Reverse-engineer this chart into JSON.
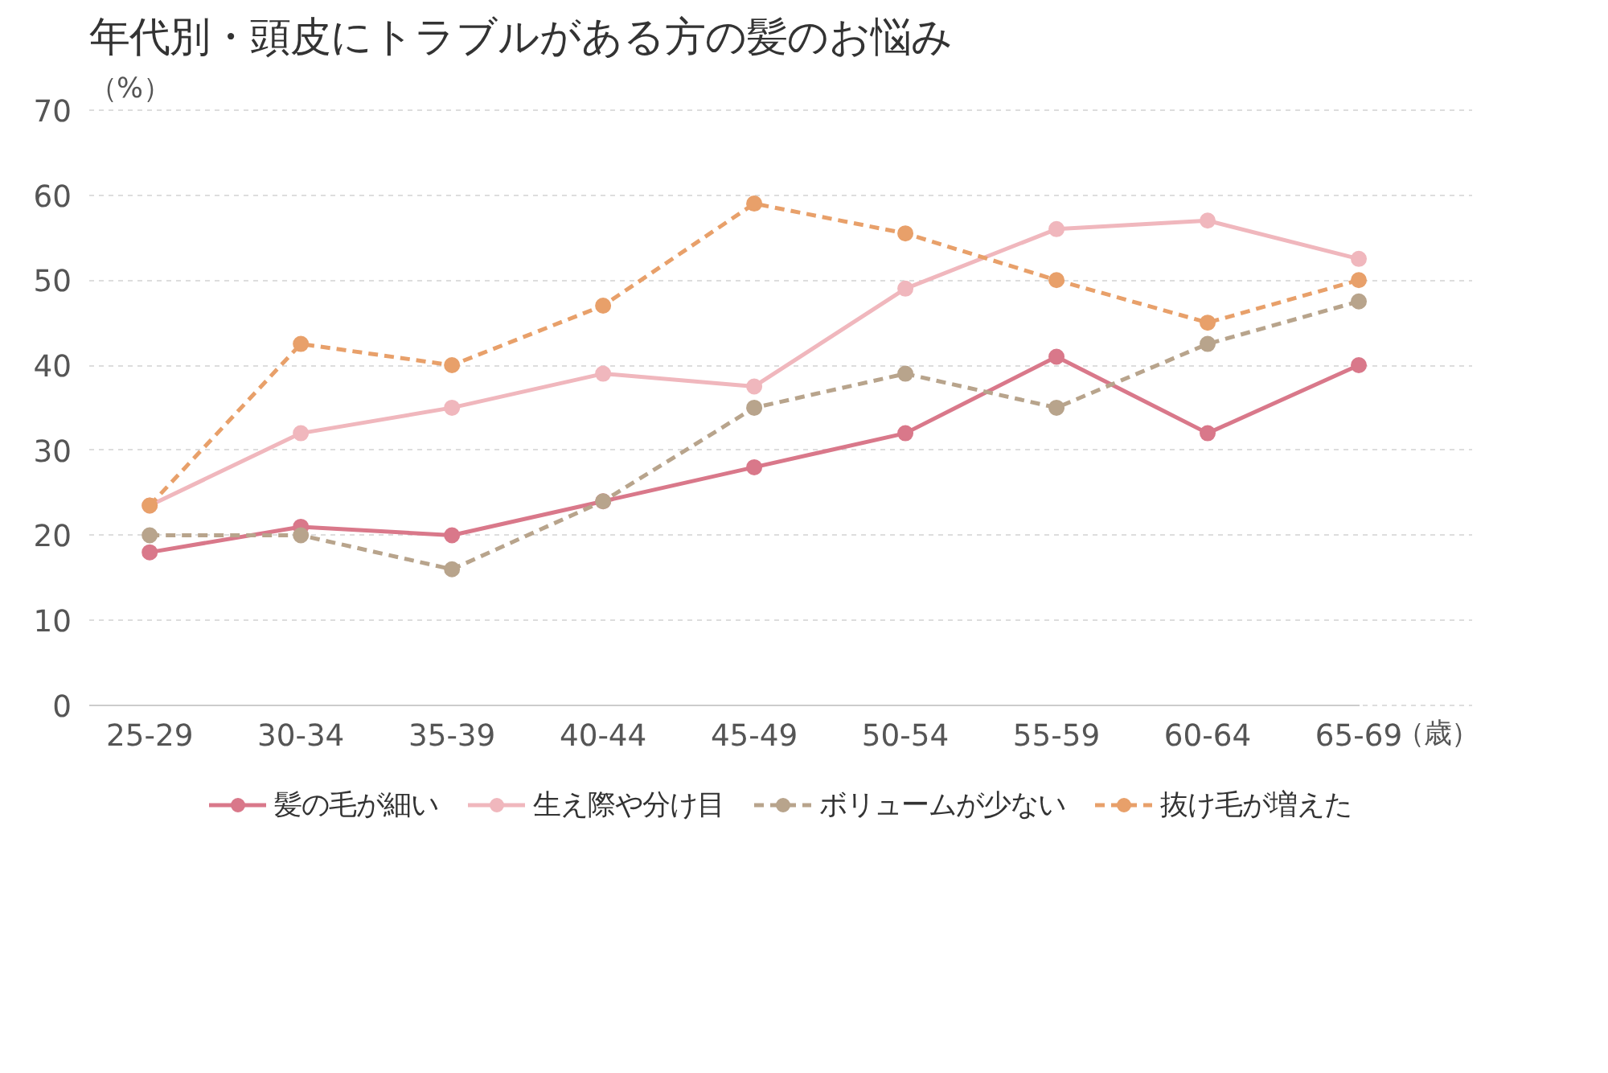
{
  "chart_data": {
    "type": "line",
    "title": "年代別・頭皮にトラブルがある方の髪のお悩み",
    "ylabel": "（%）",
    "xlabel": "（歳）",
    "categories": [
      "25-29",
      "30-34",
      "35-39",
      "40-44",
      "45-49",
      "50-54",
      "55-59",
      "60-64",
      "65-69"
    ],
    "ylim": [
      0,
      70
    ],
    "yticks": [
      0,
      10,
      20,
      30,
      40,
      50,
      60,
      70
    ],
    "grid": "y",
    "legend": "bottom",
    "marker": "circle",
    "series": [
      {
        "name": "髪の毛が細い",
        "color": "#d9788a",
        "line_style": "solid",
        "values": [
          18,
          21,
          20,
          24,
          28,
          32,
          41,
          32,
          40
        ]
      },
      {
        "name": "生え際や分け目",
        "color": "#f0b7bd",
        "line_style": "solid",
        "values": [
          23.5,
          32,
          35,
          39,
          37.5,
          49,
          56,
          57,
          52.5
        ]
      },
      {
        "name": "ボリュームが少ない",
        "color": "#b8a48c",
        "line_style": "dashed",
        "values": [
          20,
          20,
          16,
          24,
          35,
          39,
          35,
          42.5,
          47.5
        ]
      },
      {
        "name": "抜け毛が増えた",
        "color": "#e8a06a",
        "line_style": "dashed",
        "values": [
          23.5,
          42.5,
          40,
          47,
          59,
          55.5,
          50,
          45,
          50
        ]
      }
    ]
  }
}
